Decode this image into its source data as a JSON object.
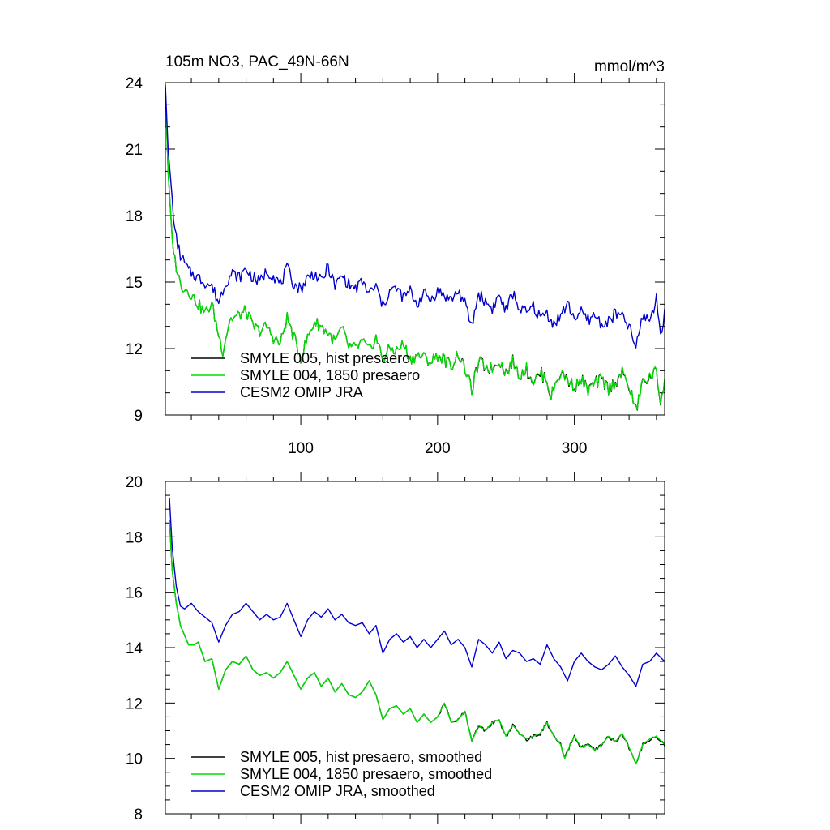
{
  "colors": {
    "hist": "#000000",
    "p1850": "#00dd00",
    "omip": "#0000cc"
  },
  "chart_data": [
    {
      "type": "line",
      "title": "105m NO3, PAC_49N-66N",
      "units": "mmol/m^3",
      "xlim": [
        1,
        366
      ],
      "ylim": [
        9,
        24
      ],
      "yticks": [
        9,
        12,
        15,
        18,
        21,
        24
      ],
      "xticks": [
        100,
        200,
        300
      ],
      "legend_position": "bottom-left",
      "series": [
        {
          "name": "SMYLE 005, hist presaero",
          "color": "#000000",
          "key": "hist"
        },
        {
          "name": "SMYLE 004, 1850 presaero",
          "color": "#00dd00",
          "key": "p1850"
        },
        {
          "name": "CESM2 OMIP JRA",
          "color": "#0000cc",
          "key": "omip"
        }
      ],
      "keypoints": {
        "p1850": [
          [
            1,
            23.8
          ],
          [
            3,
            20.0
          ],
          [
            6,
            17.0
          ],
          [
            8,
            16.0
          ],
          [
            12,
            14.9
          ],
          [
            18,
            14.6
          ],
          [
            25,
            14.0
          ],
          [
            30,
            13.6
          ],
          [
            35,
            14.0
          ],
          [
            40,
            12.6
          ],
          [
            43,
            11.9
          ],
          [
            48,
            13.3
          ],
          [
            55,
            13.5
          ],
          [
            60,
            13.7
          ],
          [
            65,
            13.0
          ],
          [
            70,
            12.8
          ],
          [
            75,
            13.0
          ],
          [
            80,
            12.5
          ],
          [
            85,
            12.2
          ],
          [
            90,
            13.4
          ],
          [
            95,
            12.5
          ],
          [
            100,
            11.6
          ],
          [
            105,
            12.5
          ],
          [
            110,
            13.2
          ],
          [
            115,
            13.0
          ],
          [
            120,
            12.7
          ],
          [
            125,
            12.3
          ],
          [
            130,
            12.9
          ],
          [
            135,
            12.1
          ],
          [
            140,
            12.0
          ],
          [
            145,
            12.3
          ],
          [
            150,
            11.9
          ],
          [
            155,
            12.5
          ],
          [
            160,
            11.5
          ],
          [
            165,
            12.0
          ],
          [
            170,
            11.9
          ],
          [
            175,
            12.2
          ],
          [
            180,
            11.5
          ],
          [
            185,
            11.7
          ],
          [
            190,
            11.6
          ],
          [
            195,
            11.4
          ],
          [
            200,
            11.7
          ],
          [
            205,
            11.5
          ],
          [
            210,
            11.2
          ],
          [
            215,
            11.8
          ],
          [
            220,
            11.1
          ],
          [
            225,
            10.1
          ],
          [
            230,
            11.4
          ],
          [
            235,
            11.2
          ],
          [
            240,
            11.1
          ],
          [
            245,
            11.5
          ],
          [
            250,
            10.9
          ],
          [
            255,
            11.4
          ],
          [
            260,
            10.8
          ],
          [
            265,
            11.1
          ],
          [
            270,
            10.5
          ],
          [
            275,
            10.9
          ],
          [
            280,
            10.6
          ],
          [
            283,
            9.8
          ],
          [
            286,
            10.4
          ],
          [
            290,
            10.9
          ],
          [
            295,
            10.6
          ],
          [
            300,
            10.3
          ],
          [
            305,
            10.6
          ],
          [
            310,
            10.1
          ],
          [
            315,
            10.4
          ],
          [
            320,
            10.6
          ],
          [
            325,
            10.2
          ],
          [
            330,
            10.5
          ],
          [
            335,
            10.9
          ],
          [
            340,
            10.3
          ],
          [
            345,
            9.2
          ],
          [
            350,
            10.5
          ],
          [
            355,
            10.7
          ],
          [
            360,
            11.0
          ],
          [
            363,
            9.6
          ],
          [
            366,
            10.6
          ]
        ],
        "omip": [
          [
            1,
            23.9
          ],
          [
            3,
            21.0
          ],
          [
            6,
            18.8
          ],
          [
            8,
            17.2
          ],
          [
            12,
            16.2
          ],
          [
            18,
            15.5
          ],
          [
            25,
            15.2
          ],
          [
            30,
            15.0
          ],
          [
            35,
            14.8
          ],
          [
            40,
            14.1
          ],
          [
            45,
            15.0
          ],
          [
            50,
            15.4
          ],
          [
            55,
            15.2
          ],
          [
            60,
            15.6
          ],
          [
            65,
            15.2
          ],
          [
            70,
            15.0
          ],
          [
            75,
            15.5
          ],
          [
            80,
            15.3
          ],
          [
            85,
            14.9
          ],
          [
            90,
            15.6
          ],
          [
            95,
            14.9
          ],
          [
            100,
            14.7
          ],
          [
            105,
            15.2
          ],
          [
            110,
            15.4
          ],
          [
            115,
            15.0
          ],
          [
            120,
            15.7
          ],
          [
            125,
            14.8
          ],
          [
            130,
            15.3
          ],
          [
            135,
            14.9
          ],
          [
            140,
            14.7
          ],
          [
            145,
            15.0
          ],
          [
            150,
            14.5
          ],
          [
            155,
            14.8
          ],
          [
            160,
            13.9
          ],
          [
            165,
            14.6
          ],
          [
            170,
            14.7
          ],
          [
            175,
            14.3
          ],
          [
            180,
            14.6
          ],
          [
            185,
            14.0
          ],
          [
            190,
            14.5
          ],
          [
            195,
            14.2
          ],
          [
            200,
            14.6
          ],
          [
            205,
            14.4
          ],
          [
            210,
            14.2
          ],
          [
            215,
            14.6
          ],
          [
            220,
            14.0
          ],
          [
            225,
            13.0
          ],
          [
            230,
            14.5
          ],
          [
            235,
            14.1
          ],
          [
            240,
            13.8
          ],
          [
            245,
            14.4
          ],
          [
            250,
            13.7
          ],
          [
            255,
            14.5
          ],
          [
            260,
            13.8
          ],
          [
            265,
            13.6
          ],
          [
            270,
            13.9
          ],
          [
            275,
            13.4
          ],
          [
            280,
            13.6
          ],
          [
            285,
            13.1
          ],
          [
            290,
            13.5
          ],
          [
            295,
            14.0
          ],
          [
            300,
            13.4
          ],
          [
            305,
            13.6
          ],
          [
            310,
            13.3
          ],
          [
            315,
            13.5
          ],
          [
            320,
            13.1
          ],
          [
            325,
            13.2
          ],
          [
            330,
            13.6
          ],
          [
            335,
            13.4
          ],
          [
            340,
            13.0
          ],
          [
            345,
            12.0
          ],
          [
            350,
            13.5
          ],
          [
            355,
            13.3
          ],
          [
            360,
            14.2
          ],
          [
            363,
            12.7
          ],
          [
            366,
            13.6
          ]
        ]
      }
    },
    {
      "type": "line",
      "title": "",
      "xlim": [
        1,
        366
      ],
      "ylim": [
        8,
        20
      ],
      "yticks": [
        8,
        10,
        12,
        14,
        16,
        18,
        20
      ],
      "legend_position": "bottom-left",
      "series": [
        {
          "name": "SMYLE 005, hist presaero, smoothed",
          "color": "#000000",
          "key": "hist"
        },
        {
          "name": "SMYLE 004, 1850 presaero, smoothed",
          "color": "#00dd00",
          "key": "p1850"
        },
        {
          "name": "CESM2 OMIP JRA, smoothed",
          "color": "#0000cc",
          "key": "omip"
        }
      ],
      "keypoints": {
        "p1850": [
          [
            4,
            18.6
          ],
          [
            6,
            16.8
          ],
          [
            9,
            15.6
          ],
          [
            12,
            14.8
          ],
          [
            18,
            14.1
          ],
          [
            22,
            14.1
          ],
          [
            25,
            14.2
          ],
          [
            30,
            13.5
          ],
          [
            35,
            13.6
          ],
          [
            40,
            12.5
          ],
          [
            45,
            13.2
          ],
          [
            50,
            13.5
          ],
          [
            55,
            13.4
          ],
          [
            60,
            13.7
          ],
          [
            65,
            13.2
          ],
          [
            70,
            13.0
          ],
          [
            75,
            13.1
          ],
          [
            80,
            12.9
          ],
          [
            85,
            13.1
          ],
          [
            90,
            13.5
          ],
          [
            95,
            13.0
          ],
          [
            100,
            12.5
          ],
          [
            105,
            12.9
          ],
          [
            110,
            13.1
          ],
          [
            115,
            12.6
          ],
          [
            120,
            12.9
          ],
          [
            125,
            12.4
          ],
          [
            130,
            12.7
          ],
          [
            135,
            12.3
          ],
          [
            140,
            12.2
          ],
          [
            145,
            12.4
          ],
          [
            150,
            12.8
          ],
          [
            155,
            12.3
          ],
          [
            160,
            11.4
          ],
          [
            165,
            11.8
          ],
          [
            170,
            11.9
          ],
          [
            175,
            11.6
          ],
          [
            180,
            11.8
          ],
          [
            185,
            11.3
          ],
          [
            190,
            11.6
          ],
          [
            195,
            11.3
          ],
          [
            200,
            11.5
          ],
          [
            205,
            12.0
          ],
          [
            210,
            11.3
          ],
          [
            215,
            11.4
          ],
          [
            220,
            11.7
          ],
          [
            225,
            10.6
          ],
          [
            230,
            11.2
          ],
          [
            235,
            11.0
          ],
          [
            240,
            11.3
          ],
          [
            245,
            11.4
          ],
          [
            250,
            10.8
          ],
          [
            255,
            11.2
          ],
          [
            260,
            10.9
          ],
          [
            265,
            10.7
          ],
          [
            270,
            10.8
          ],
          [
            275,
            10.9
          ],
          [
            280,
            11.3
          ],
          [
            285,
            10.8
          ],
          [
            290,
            10.5
          ],
          [
            293,
            10.0
          ],
          [
            297,
            10.5
          ],
          [
            300,
            10.8
          ],
          [
            305,
            10.4
          ],
          [
            310,
            10.5
          ],
          [
            315,
            10.3
          ],
          [
            320,
            10.5
          ],
          [
            325,
            10.8
          ],
          [
            330,
            10.6
          ],
          [
            335,
            10.9
          ],
          [
            340,
            10.4
          ],
          [
            345,
            9.8
          ],
          [
            350,
            10.5
          ],
          [
            355,
            10.7
          ],
          [
            360,
            10.8
          ],
          [
            366,
            10.5
          ]
        ],
        "omip": [
          [
            4,
            19.4
          ],
          [
            6,
            17.6
          ],
          [
            9,
            16.2
          ],
          [
            12,
            15.5
          ],
          [
            15,
            15.4
          ],
          [
            20,
            15.6
          ],
          [
            25,
            15.3
          ],
          [
            30,
            15.1
          ],
          [
            35,
            14.9
          ],
          [
            40,
            14.2
          ],
          [
            45,
            14.8
          ],
          [
            50,
            15.2
          ],
          [
            55,
            15.3
          ],
          [
            60,
            15.6
          ],
          [
            65,
            15.3
          ],
          [
            70,
            15.0
          ],
          [
            75,
            15.2
          ],
          [
            80,
            15.0
          ],
          [
            85,
            15.1
          ],
          [
            90,
            15.6
          ],
          [
            95,
            15.0
          ],
          [
            100,
            14.4
          ],
          [
            105,
            15.0
          ],
          [
            110,
            15.3
          ],
          [
            115,
            15.1
          ],
          [
            120,
            15.4
          ],
          [
            125,
            15.0
          ],
          [
            130,
            15.2
          ],
          [
            135,
            14.9
          ],
          [
            140,
            14.8
          ],
          [
            145,
            14.9
          ],
          [
            150,
            14.5
          ],
          [
            155,
            14.8
          ],
          [
            160,
            13.8
          ],
          [
            165,
            14.3
          ],
          [
            170,
            14.5
          ],
          [
            175,
            14.2
          ],
          [
            180,
            14.4
          ],
          [
            185,
            14.0
          ],
          [
            190,
            14.3
          ],
          [
            195,
            14.0
          ],
          [
            200,
            14.3
          ],
          [
            205,
            14.6
          ],
          [
            210,
            14.1
          ],
          [
            215,
            14.3
          ],
          [
            220,
            14.0
          ],
          [
            225,
            13.3
          ],
          [
            230,
            14.3
          ],
          [
            235,
            14.1
          ],
          [
            240,
            13.8
          ],
          [
            245,
            14.2
          ],
          [
            250,
            13.6
          ],
          [
            255,
            13.9
          ],
          [
            260,
            13.8
          ],
          [
            265,
            13.5
          ],
          [
            270,
            13.6
          ],
          [
            275,
            13.4
          ],
          [
            280,
            14.1
          ],
          [
            285,
            13.6
          ],
          [
            290,
            13.3
          ],
          [
            295,
            12.8
          ],
          [
            300,
            13.5
          ],
          [
            305,
            13.8
          ],
          [
            310,
            13.5
          ],
          [
            315,
            13.3
          ],
          [
            320,
            13.2
          ],
          [
            325,
            13.4
          ],
          [
            330,
            13.7
          ],
          [
            335,
            13.3
          ],
          [
            340,
            13.0
          ],
          [
            345,
            12.6
          ],
          [
            350,
            13.4
          ],
          [
            355,
            13.5
          ],
          [
            360,
            13.8
          ],
          [
            366,
            13.5
          ]
        ]
      }
    }
  ]
}
